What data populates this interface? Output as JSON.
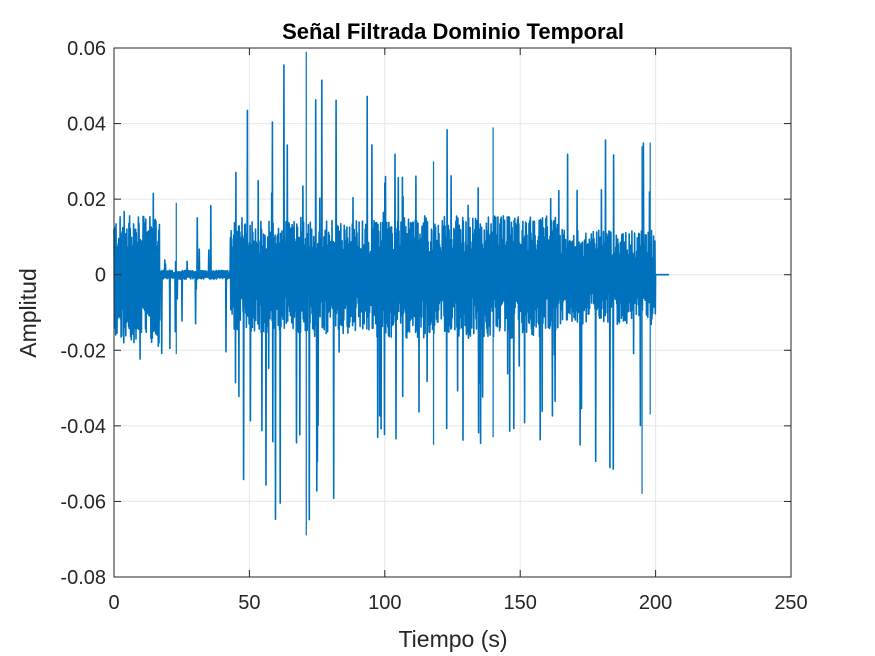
{
  "chart_data": {
    "type": "line",
    "title": "Señal Filtrada Dominio Temporal",
    "xlabel": "Tiempo (s)",
    "ylabel": "Amplitud",
    "xlim": [
      0,
      250
    ],
    "ylim": [
      -0.08,
      0.06
    ],
    "xticks": [
      0,
      50,
      100,
      150,
      200,
      250
    ],
    "xtick_labels": [
      "0",
      "50",
      "100",
      "150",
      "200",
      "250"
    ],
    "yticks": [
      -0.08,
      -0.06,
      -0.04,
      -0.02,
      0,
      0.02,
      0.04,
      0.06
    ],
    "ytick_labels": [
      "-0.08",
      "-0.06",
      "-0.04",
      "-0.02",
      "0",
      "0.02",
      "0.04",
      "0.06"
    ],
    "grid": true,
    "line_color": "#0072BD",
    "series": [
      {
        "name": "Señal filtrada",
        "description": "dense oscillating audio signal (envelope approximation)",
        "segments": [
          {
            "t_start": 0,
            "t_end": 17,
            "upper": 0.013,
            "lower": -0.015,
            "peak_max": 0.026,
            "peak_min": -0.027
          },
          {
            "t_start": 17,
            "t_end": 43,
            "upper": 0.001,
            "lower": -0.001,
            "peak_max": 0.019,
            "peak_min": -0.021
          },
          {
            "t_start": 43,
            "t_end": 95,
            "upper": 0.012,
            "lower": -0.013,
            "peak_max": 0.059,
            "peak_min": -0.069
          },
          {
            "t_start": 95,
            "t_end": 164,
            "upper": 0.013,
            "lower": -0.014,
            "peak_max": 0.039,
            "peak_min": -0.045
          },
          {
            "t_start": 164,
            "t_end": 200,
            "upper": 0.01,
            "lower": -0.011,
            "peak_max": 0.038,
            "peak_min": -0.058
          },
          {
            "t_start": 200,
            "t_end": 205,
            "upper": 0.0,
            "lower": 0.0,
            "peak_max": 0.0,
            "peak_min": 0.0
          }
        ],
        "notable_spikes": [
          {
            "t": 23,
            "max": 0.019,
            "min": -0.021
          },
          {
            "t": 71,
            "max": 0.059,
            "min": -0.069
          },
          {
            "t": 140,
            "max": 0.039,
            "min": -0.043
          },
          {
            "t": 118,
            "max": 0.03,
            "min": -0.045
          },
          {
            "t": 195,
            "max": 0.034,
            "min": -0.058
          },
          {
            "t": 198,
            "max": 0.035,
            "min": -0.037
          }
        ]
      }
    ]
  }
}
